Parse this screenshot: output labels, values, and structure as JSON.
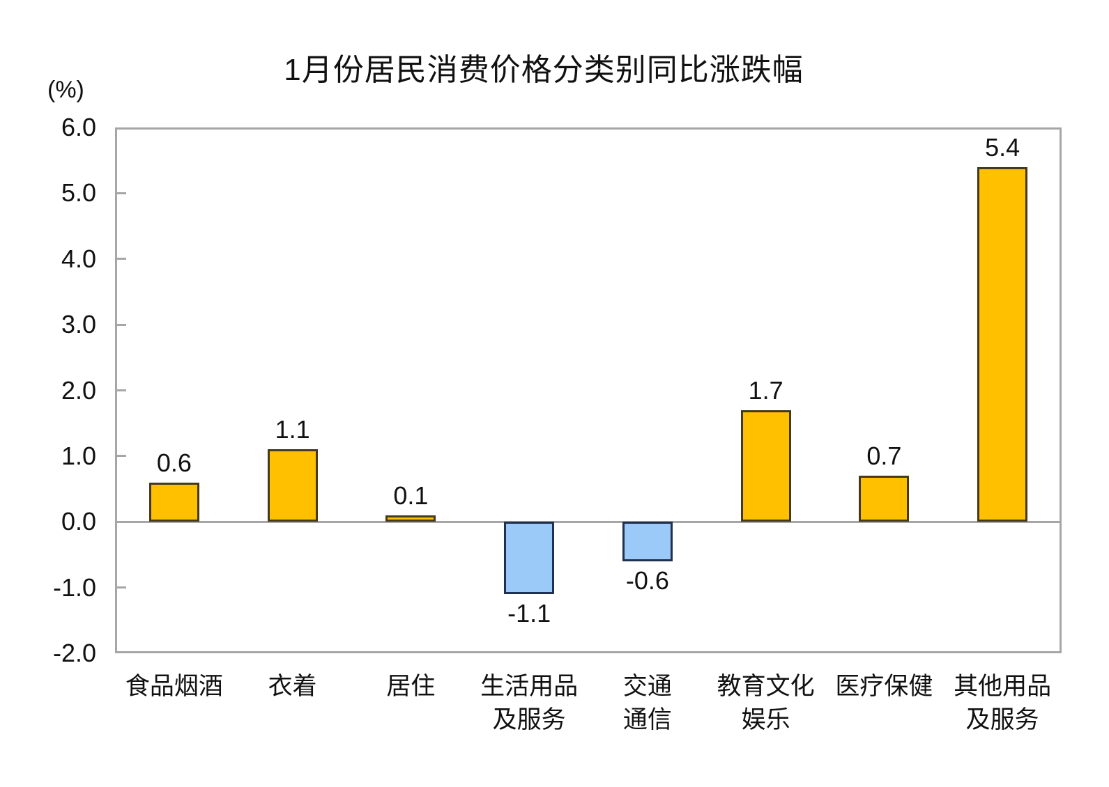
{
  "chart_data": {
    "type": "bar",
    "title": "1月份居民消费价格分类别同比涨跌幅",
    "ylabel": "(%)",
    "xlabel": "",
    "categories": [
      "食品烟酒",
      "衣着",
      "居住",
      "生活用品\n及服务",
      "交通\n通信",
      "教育文化\n娱乐",
      "医疗保健",
      "其他用品\n及服务"
    ],
    "values": [
      0.6,
      1.1,
      0.1,
      -1.1,
      -0.6,
      1.7,
      0.7,
      5.4
    ],
    "value_labels": [
      "0.6",
      "1.1",
      "0.1",
      "-1.1",
      "-0.6",
      "1.7",
      "0.7",
      "5.4"
    ],
    "ylim": [
      -2.0,
      6.0
    ],
    "ytick_step": 1.0,
    "yticks": [
      "6.0",
      "5.0",
      "4.0",
      "3.0",
      "2.0",
      "1.0",
      "0.0",
      "-1.0",
      "-2.0"
    ],
    "grid": false,
    "legend": null,
    "baseline": 0,
    "colors": {
      "positive_fill": "#FFC000",
      "positive_border": "#44391B",
      "negative_fill": "#9CCAF8",
      "negative_border": "#1F3050",
      "axis": "#A6A6A6",
      "text": "#111111",
      "background": "#FFFFFF"
    }
  }
}
